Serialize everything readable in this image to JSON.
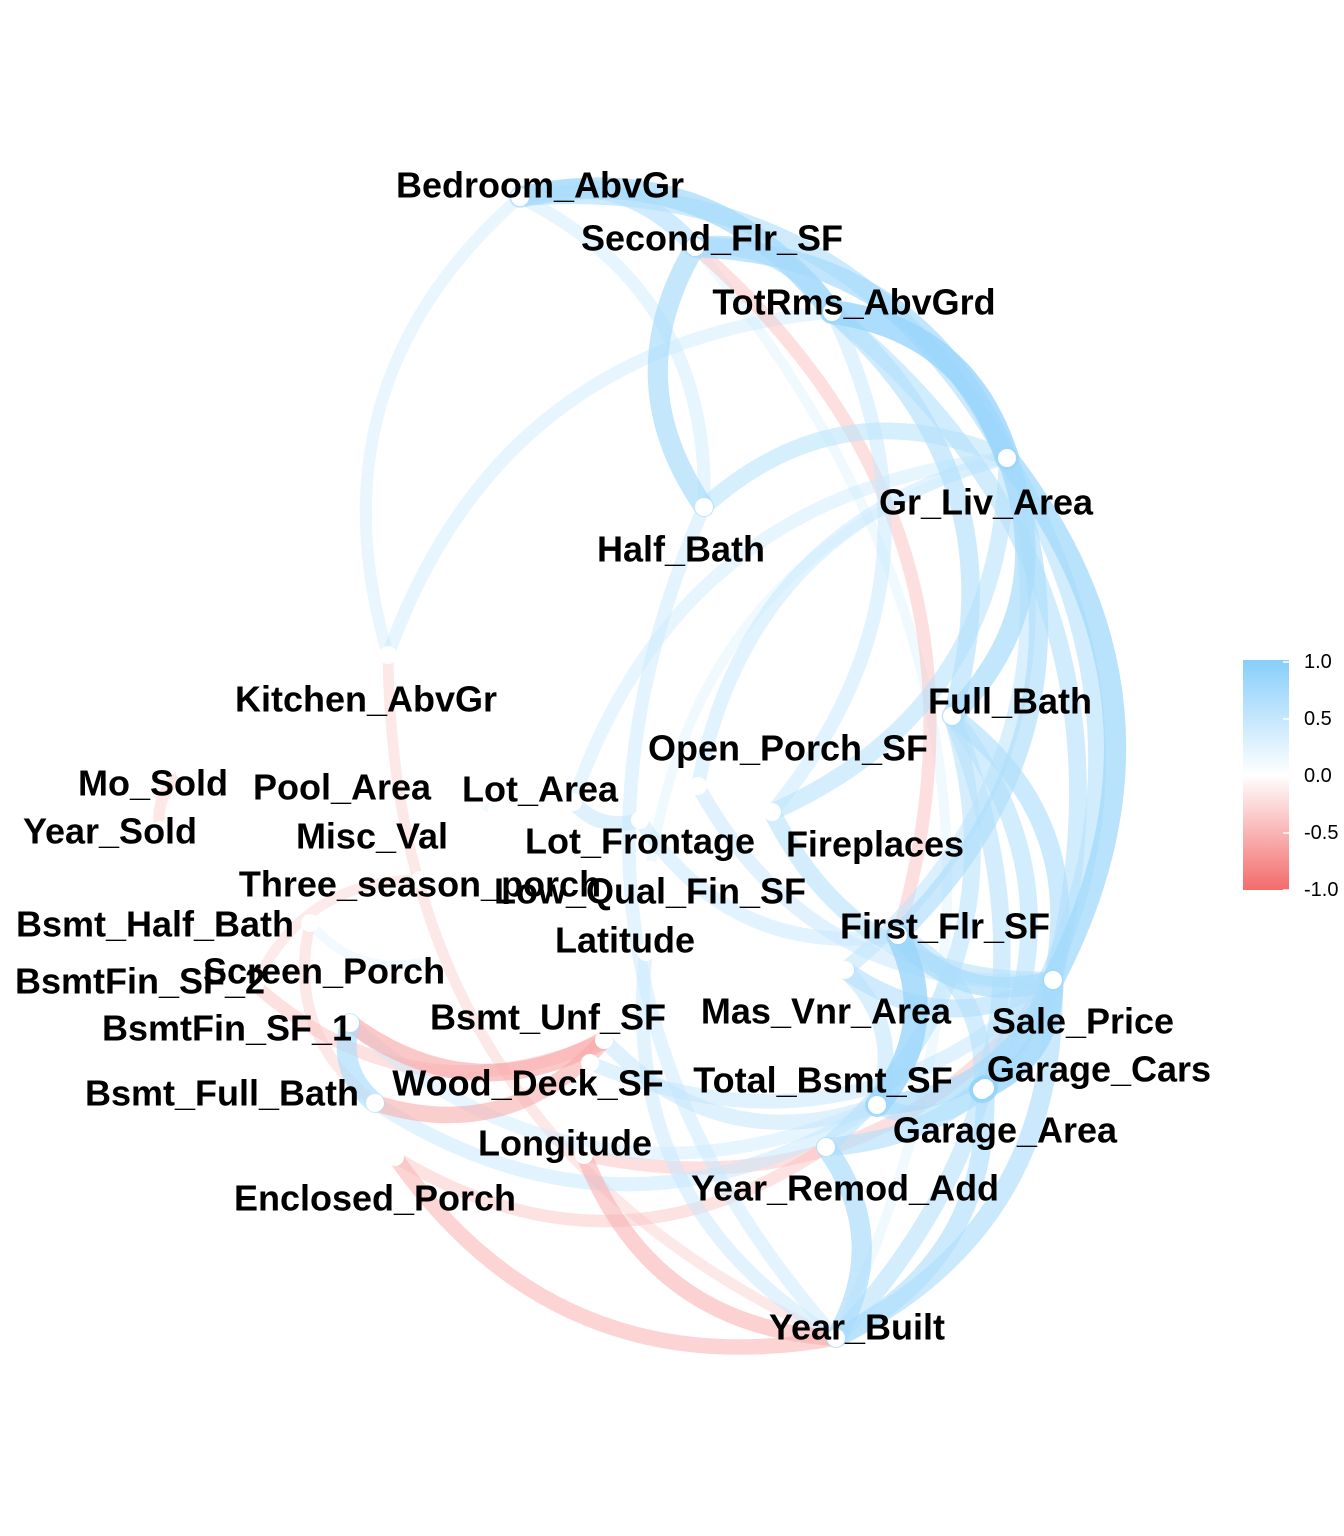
{
  "chart_data": {
    "type": "network",
    "title": "",
    "colors": {
      "positive": "#87CEFA",
      "neutral": "#FFFFFF",
      "negative": "#F36B6B"
    },
    "legend": {
      "placement": "right",
      "ticks": [
        "1.0",
        "0.5",
        "0.0",
        "-0.5",
        "-1.0"
      ],
      "range": [
        -1,
        1
      ]
    },
    "nodes": [
      {
        "id": "Bedroom_AbvGr",
        "label": "Bedroom_AbvGr"
      },
      {
        "id": "Second_Flr_SF",
        "label": "Second_Flr_SF"
      },
      {
        "id": "TotRms_AbvGrd",
        "label": "TotRms_AbvGrd"
      },
      {
        "id": "Gr_Liv_Area",
        "label": "Gr_Liv_Area"
      },
      {
        "id": "Half_Bath",
        "label": "Half_Bath"
      },
      {
        "id": "Kitchen_AbvGr",
        "label": "Kitchen_AbvGr"
      },
      {
        "id": "Full_Bath",
        "label": "Full_Bath"
      },
      {
        "id": "Open_Porch_SF",
        "label": "Open_Porch_SF"
      },
      {
        "id": "Mo_Sold",
        "label": "Mo_Sold"
      },
      {
        "id": "Pool_Area",
        "label": "Pool_Area"
      },
      {
        "id": "Lot_Area",
        "label": "Lot_Area"
      },
      {
        "id": "Year_Sold",
        "label": "Year_Sold"
      },
      {
        "id": "Misc_Val",
        "label": "Misc_Val"
      },
      {
        "id": "Lot_Frontage",
        "label": "Lot_Frontage"
      },
      {
        "id": "Fireplaces",
        "label": "Fireplaces"
      },
      {
        "id": "Three_season_porch",
        "label": "Three_season_porch"
      },
      {
        "id": "Low_Qual_Fin_SF",
        "label": "Low_Qual_Fin_SF"
      },
      {
        "id": "Bsmt_Half_Bath",
        "label": "Bsmt_Half_Bath"
      },
      {
        "id": "Latitude",
        "label": "Latitude"
      },
      {
        "id": "First_Flr_SF",
        "label": "First_Flr_SF"
      },
      {
        "id": "Screen_Porch",
        "label": "Screen_Porch"
      },
      {
        "id": "BsmtFin_SF_2",
        "label": "BsmtFin_SF_2"
      },
      {
        "id": "Mas_Vnr_Area",
        "label": "Mas_Vnr_Area"
      },
      {
        "id": "Bsmt_Unf_SF",
        "label": "Bsmt_Unf_SF"
      },
      {
        "id": "Sale_Price",
        "label": "Sale_Price"
      },
      {
        "id": "BsmtFin_SF_1",
        "label": "BsmtFin_SF_1"
      },
      {
        "id": "Garage_Cars",
        "label": "Garage_Cars"
      },
      {
        "id": "Wood_Deck_SF",
        "label": "Wood_Deck_SF"
      },
      {
        "id": "Total_Bsmt_SF",
        "label": "Total_Bsmt_SF"
      },
      {
        "id": "Bsmt_Full_Bath",
        "label": "Bsmt_Full_Bath"
      },
      {
        "id": "Garage_Area",
        "label": "Garage_Area"
      },
      {
        "id": "Longitude",
        "label": "Longitude"
      },
      {
        "id": "Year_Remod_Add",
        "label": "Year_Remod_Add"
      },
      {
        "id": "Enclosed_Porch",
        "label": "Enclosed_Porch"
      },
      {
        "id": "Year_Built",
        "label": "Year_Built"
      }
    ],
    "edges": [
      {
        "source": "TotRms_AbvGrd",
        "target": "Gr_Liv_Area",
        "r": 0.81
      },
      {
        "source": "Garage_Cars",
        "target": "Garage_Area",
        "r": 0.89
      },
      {
        "source": "Total_Bsmt_SF",
        "target": "First_Flr_SF",
        "r": 0.8
      },
      {
        "source": "Gr_Liv_Area",
        "target": "Sale_Price",
        "r": 0.71
      },
      {
        "source": "Bedroom_AbvGr",
        "target": "TotRms_AbvGrd",
        "r": 0.67
      },
      {
        "source": "Second_Flr_SF",
        "target": "Gr_Liv_Area",
        "r": 0.66
      },
      {
        "source": "Garage_Cars",
        "target": "Sale_Price",
        "r": 0.65
      },
      {
        "source": "Garage_Area",
        "target": "Sale_Price",
        "r": 0.64
      },
      {
        "source": "Total_Bsmt_SF",
        "target": "Sale_Price",
        "r": 0.63
      },
      {
        "source": "Gr_Liv_Area",
        "target": "Full_Bath",
        "r": 0.63
      },
      {
        "source": "First_Flr_SF",
        "target": "Sale_Price",
        "r": 0.62
      },
      {
        "source": "Half_Bath",
        "target": "Second_Flr_SF",
        "r": 0.61
      },
      {
        "source": "Year_Built",
        "target": "Year_Remod_Add",
        "r": 0.61
      },
      {
        "source": "BsmtFin_SF_1",
        "target": "Bsmt_Full_Bath",
        "r": 0.6
      },
      {
        "source": "Second_Flr_SF",
        "target": "TotRms_AbvGrd",
        "r": 0.58
      },
      {
        "source": "Year_Built",
        "target": "Garage_Cars",
        "r": 0.54
      },
      {
        "source": "Full_Bath",
        "target": "Sale_Price",
        "r": 0.55
      },
      {
        "source": "Year_Built",
        "target": "Sale_Price",
        "r": 0.56
      },
      {
        "source": "Gr_Liv_Area",
        "target": "First_Flr_SF",
        "r": 0.56
      },
      {
        "source": "Bedroom_AbvGr",
        "target": "Gr_Liv_Area",
        "r": 0.52
      },
      {
        "source": "Year_Remod_Add",
        "target": "Sale_Price",
        "r": 0.53
      },
      {
        "source": "TotRms_AbvGrd",
        "target": "Full_Bath",
        "r": 0.53
      },
      {
        "source": "Mas_Vnr_Area",
        "target": "Sale_Price",
        "r": 0.5
      },
      {
        "source": "Fireplaces",
        "target": "Sale_Price",
        "r": 0.47
      },
      {
        "source": "Year_Built",
        "target": "Full_Bath",
        "r": 0.47
      },
      {
        "source": "TotRms_AbvGrd",
        "target": "Sale_Price",
        "r": 0.49
      },
      {
        "source": "Gr_Liv_Area",
        "target": "Garage_Cars",
        "r": 0.49
      },
      {
        "source": "Gr_Liv_Area",
        "target": "Half_Bath",
        "r": 0.43
      },
      {
        "source": "Bedroom_AbvGr",
        "target": "Second_Flr_SF",
        "r": 0.5
      },
      {
        "source": "Bedroom_AbvGr",
        "target": "Half_Bath",
        "r": 0.25
      },
      {
        "source": "Kitchen_AbvGr",
        "target": "Bedroom_AbvGr",
        "r": 0.2
      },
      {
        "source": "Kitchen_AbvGr",
        "target": "TotRms_AbvGrd",
        "r": 0.25
      },
      {
        "source": "Second_Flr_SF",
        "target": "First_Flr_SF",
        "r": -0.25
      },
      {
        "source": "Bsmt_Unf_SF",
        "target": "BsmtFin_SF_1",
        "r": -0.48
      },
      {
        "source": "Bsmt_Unf_SF",
        "target": "Bsmt_Full_Bath",
        "r": -0.42
      },
      {
        "source": "Year_Built",
        "target": "Enclosed_Porch",
        "r": -0.37
      },
      {
        "source": "Enclosed_Porch",
        "target": "Year_Remod_Add",
        "r": -0.22
      },
      {
        "source": "Longitude",
        "target": "Year_Built",
        "r": -0.4
      },
      {
        "source": "Longitude",
        "target": "Sale_Price",
        "r": -0.25
      },
      {
        "source": "Bsmt_Half_Bath",
        "target": "Bsmt_Full_Bath",
        "r": -0.15
      },
      {
        "source": "BsmtFin_SF_2",
        "target": "Bsmt_Unf_SF",
        "r": -0.24
      },
      {
        "source": "Three_season_porch",
        "target": "BsmtFin_SF_2",
        "r": -0.12
      },
      {
        "source": "Bsmt_Full_Bath",
        "target": "Total_Bsmt_SF",
        "r": 0.3
      },
      {
        "source": "BsmtFin_SF_1",
        "target": "Total_Bsmt_SF",
        "r": 0.25
      },
      {
        "source": "Bsmt_Unf_SF",
        "target": "Total_Bsmt_SF",
        "r": 0.35
      },
      {
        "source": "Wood_Deck_SF",
        "target": "Sale_Price",
        "r": 0.32
      },
      {
        "source": "Open_Porch_SF",
        "target": "Sale_Price",
        "r": 0.31
      },
      {
        "source": "Open_Porch_SF",
        "target": "Gr_Liv_Area",
        "r": 0.3
      },
      {
        "source": "Lot_Frontage",
        "target": "Lot_Area",
        "r": 0.35
      },
      {
        "source": "Lot_Frontage",
        "target": "First_Flr_SF",
        "r": 0.3
      },
      {
        "source": "Lot_Area",
        "target": "Gr_Liv_Area",
        "r": 0.25
      },
      {
        "source": "Fireplaces",
        "target": "Gr_Liv_Area",
        "r": 0.45
      },
      {
        "source": "Fireplaces",
        "target": "TotRms_AbvGrd",
        "r": 0.3
      },
      {
        "source": "Mas_Vnr_Area",
        "target": "Gr_Liv_Area",
        "r": 0.38
      },
      {
        "source": "Mas_Vnr_Area",
        "target": "Total_Bsmt_SF",
        "r": 0.38
      },
      {
        "source": "Latitude",
        "target": "Year_Built",
        "r": 0.28
      },
      {
        "source": "Half_Bath",
        "target": "Year_Built",
        "r": 0.27
      },
      {
        "source": "Year_Remod_Add",
        "target": "Full_Bath",
        "r": 0.45
      },
      {
        "source": "Garage_Area",
        "target": "Total_Bsmt_SF",
        "r": 0.48
      },
      {
        "source": "Garage_Area",
        "target": "First_Flr_SF",
        "r": 0.48
      },
      {
        "source": "Garage_Cars",
        "target": "Full_Bath",
        "r": 0.48
      },
      {
        "source": "Bsmt_Half_Bath",
        "target": "Screen_Porch",
        "r": 0.06
      },
      {
        "source": "Mo_Sold",
        "target": "Year_Sold",
        "r": -0.16
      },
      {
        "source": "Pool_Area",
        "target": "Misc_Val",
        "r": 0.05
      },
      {
        "source": "Low_Qual_Fin_SF",
        "target": "Gr_Liv_Area",
        "r": 0.1
      },
      {
        "source": "Kitchen_AbvGr",
        "target": "Year_Built",
        "r": -0.14
      },
      {
        "source": "Second_Flr_SF",
        "target": "Year_Built",
        "r": 0.1
      }
    ]
  }
}
